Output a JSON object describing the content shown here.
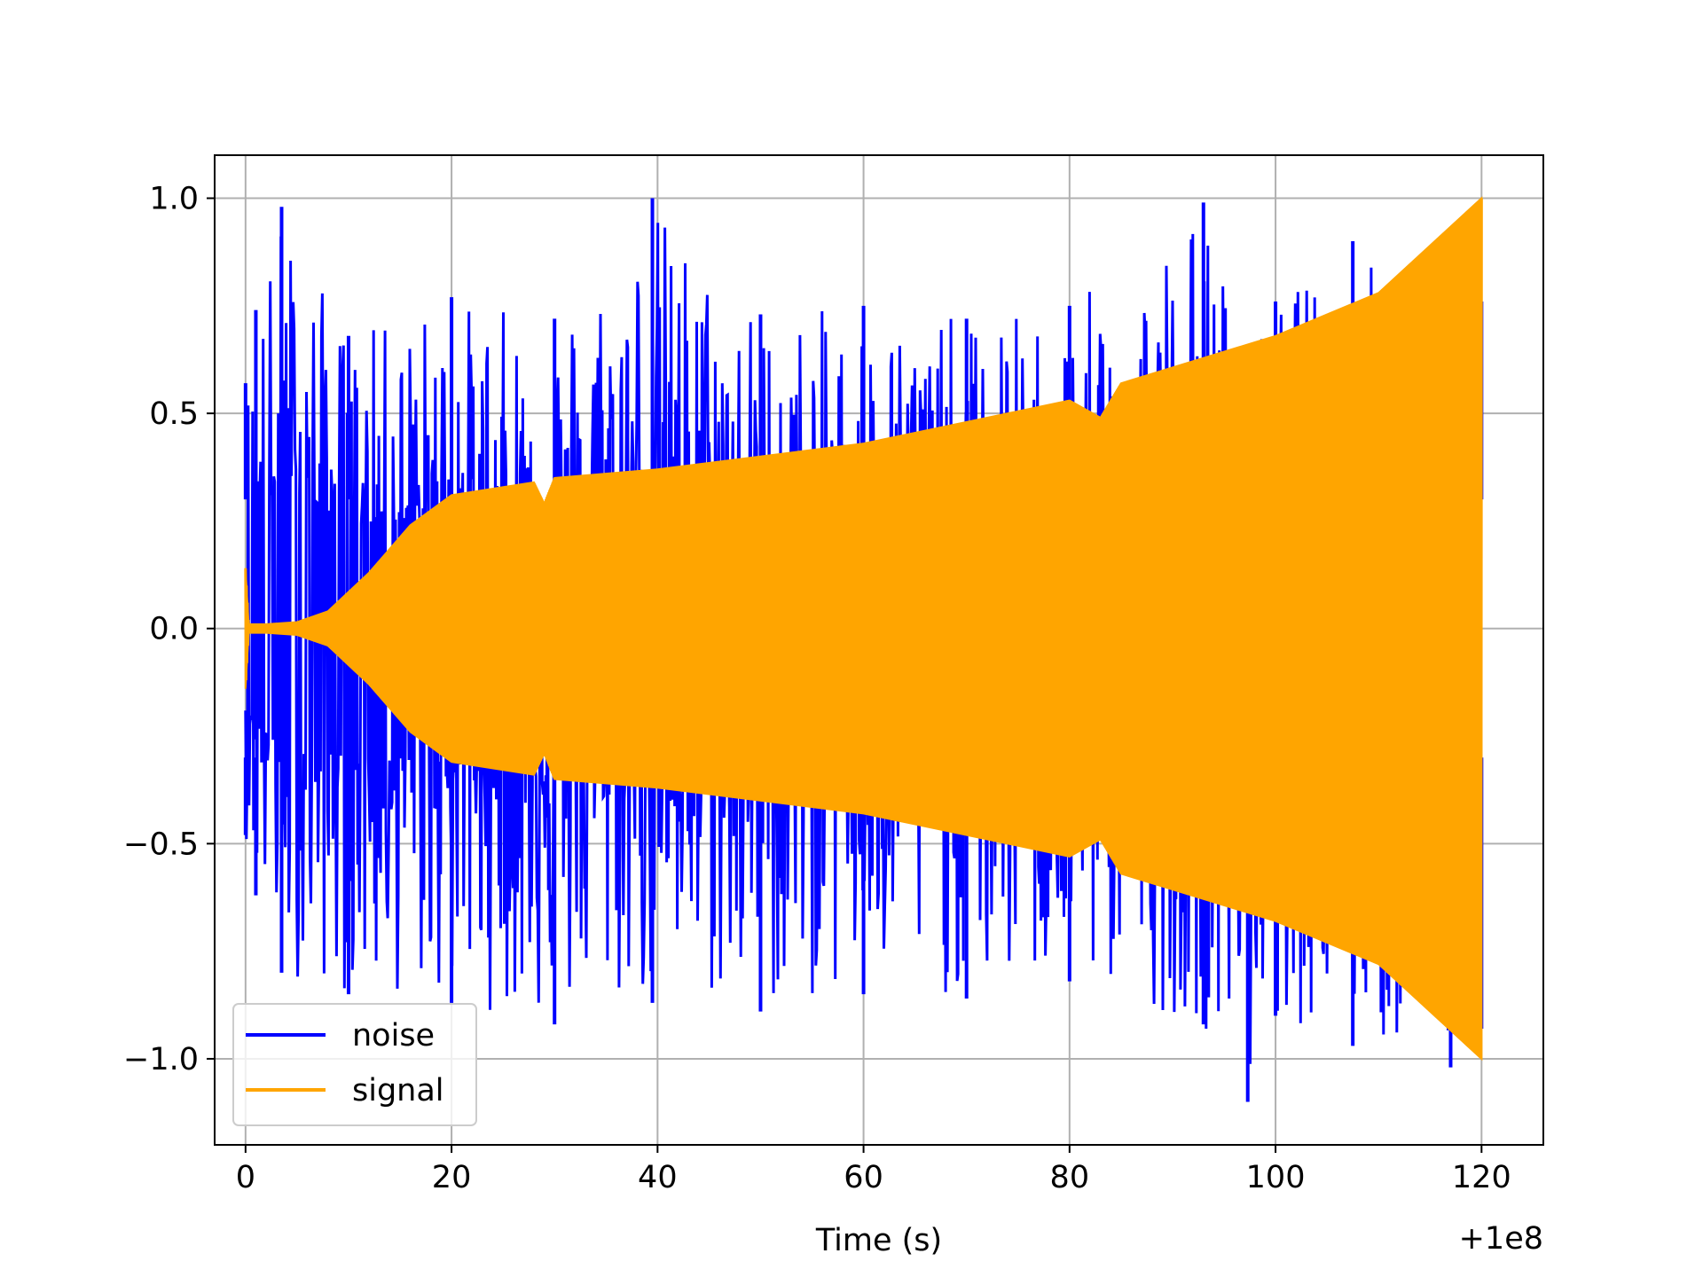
{
  "chart_data": {
    "type": "line",
    "title": "",
    "xlabel": "Time (s)",
    "ylabel": "",
    "x_offset_label": "+1e8",
    "xlim": [
      -3,
      126
    ],
    "ylim": [
      -1.2,
      1.1
    ],
    "x_ticks": [
      0,
      20,
      40,
      60,
      80,
      100,
      120
    ],
    "x_tick_labels": [
      "0",
      "20",
      "40",
      "60",
      "80",
      "100",
      "120"
    ],
    "y_ticks": [
      -1.0,
      -0.5,
      0.0,
      0.5,
      1.0
    ],
    "y_tick_labels": [
      "−1.0",
      "−0.5",
      "0.0",
      "0.5",
      "1.0"
    ],
    "grid": true,
    "legend_position": "lower-left",
    "series": [
      {
        "name": "noise",
        "color": "#0000ff",
        "x": [
          0,
          1,
          3.5,
          10,
          20,
          30,
          39.5,
          50,
          60,
          70,
          80,
          93,
          97.3,
          100,
          107.5,
          117,
          120
        ],
        "upper_envelope": [
          0.57,
          0.74,
          0.98,
          0.68,
          0.77,
          0.72,
          1.0,
          0.73,
          0.75,
          0.72,
          0.75,
          0.99,
          0.65,
          0.76,
          0.9,
          0.72,
          0.76
        ],
        "lower_envelope": [
          -0.48,
          -0.62,
          -0.8,
          -0.85,
          -0.87,
          -0.92,
          -0.87,
          -0.89,
          -0.85,
          -0.86,
          -0.82,
          -0.92,
          -1.1,
          -0.9,
          -0.97,
          -1.02,
          -0.93
        ]
      },
      {
        "name": "signal",
        "color": "#ffa500",
        "x": [
          0,
          0.3,
          2,
          5,
          8,
          12,
          16,
          20,
          28,
          29,
          30,
          40,
          60,
          80,
          83,
          85,
          100,
          110,
          120
        ],
        "amplitude": [
          0.14,
          0.01,
          0.01,
          0.015,
          0.04,
          0.13,
          0.24,
          0.31,
          0.34,
          0.29,
          0.35,
          0.37,
          0.43,
          0.53,
          0.49,
          0.57,
          0.68,
          0.78,
          1.0
        ]
      }
    ]
  }
}
